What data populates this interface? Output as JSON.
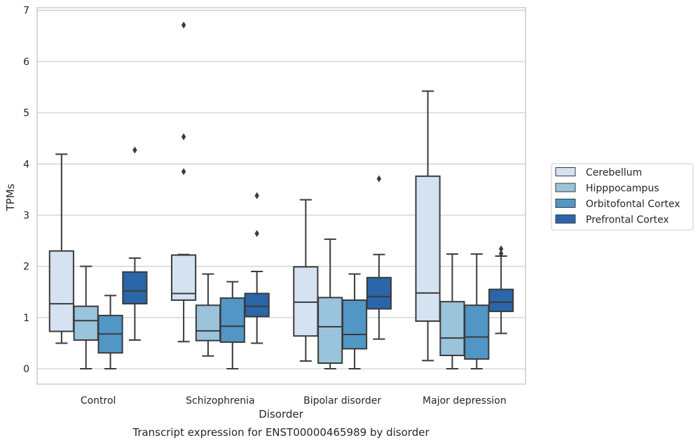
{
  "chart_data": {
    "type": "box",
    "title": "Transcript expression for ENST00000465989 by disorder",
    "xlabel": "Disorder",
    "ylabel": "TPMs",
    "ylim": [
      -0.3,
      7.05
    ],
    "yticks": [
      0,
      1,
      2,
      3,
      4,
      5,
      6,
      7
    ],
    "grid": "horizontal",
    "legend_position": "right",
    "categories": [
      "Control",
      "Schizophrenia",
      "Bipolar disorder",
      "Major depression"
    ],
    "series": [
      {
        "name": "Cerebellum",
        "color": "#d4e2f1",
        "boxes": [
          {
            "whislo": 0.5,
            "q1": 0.73,
            "med": 1.27,
            "q3": 2.3,
            "whishi": 4.19,
            "fliers": []
          },
          {
            "whislo": 0.53,
            "q1": 1.34,
            "med": 1.47,
            "q3": 2.22,
            "whishi": 2.23,
            "fliers": [
              3.85,
              4.53,
              6.71
            ]
          },
          {
            "whislo": 0.15,
            "q1": 0.64,
            "med": 1.3,
            "q3": 1.99,
            "whishi": 3.3,
            "fliers": []
          },
          {
            "whislo": 0.16,
            "q1": 0.93,
            "med": 1.48,
            "q3": 3.76,
            "whishi": 5.42,
            "fliers": []
          }
        ]
      },
      {
        "name": "Hipppocampus",
        "color": "#9ac3dc",
        "boxes": [
          {
            "whislo": 0.0,
            "q1": 0.56,
            "med": 0.94,
            "q3": 1.22,
            "whishi": 2.0,
            "fliers": []
          },
          {
            "whislo": 0.25,
            "q1": 0.55,
            "med": 0.74,
            "q3": 1.24,
            "whishi": 1.85,
            "fliers": []
          },
          {
            "whislo": 0.0,
            "q1": 0.11,
            "med": 0.82,
            "q3": 1.39,
            "whishi": 2.53,
            "fliers": []
          },
          {
            "whislo": 0.0,
            "q1": 0.26,
            "med": 0.6,
            "q3": 1.31,
            "whishi": 2.24,
            "fliers": []
          }
        ]
      },
      {
        "name": "Orbitofontal Cortex",
        "color": "#5196c5",
        "boxes": [
          {
            "whislo": 0.0,
            "q1": 0.31,
            "med": 0.68,
            "q3": 1.04,
            "whishi": 1.43,
            "fliers": []
          },
          {
            "whislo": 0.0,
            "q1": 0.52,
            "med": 0.83,
            "q3": 1.38,
            "whishi": 1.7,
            "fliers": []
          },
          {
            "whislo": 0.0,
            "q1": 0.39,
            "med": 0.67,
            "q3": 1.34,
            "whishi": 1.85,
            "fliers": []
          },
          {
            "whislo": 0.0,
            "q1": 0.19,
            "med": 0.62,
            "q3": 1.24,
            "whishi": 2.24,
            "fliers": []
          }
        ]
      },
      {
        "name": "Prefrontal Cortex",
        "color": "#2a66a8",
        "boxes": [
          {
            "whislo": 0.56,
            "q1": 1.27,
            "med": 1.52,
            "q3": 1.89,
            "whishi": 2.16,
            "fliers": [
              4.27
            ]
          },
          {
            "whislo": 0.5,
            "q1": 1.02,
            "med": 1.22,
            "q3": 1.47,
            "whishi": 1.9,
            "fliers": [
              2.64,
              3.38
            ]
          },
          {
            "whislo": 0.58,
            "q1": 1.17,
            "med": 1.41,
            "q3": 1.78,
            "whishi": 2.23,
            "fliers": [
              3.71
            ]
          },
          {
            "whislo": 0.69,
            "q1": 1.12,
            "med": 1.3,
            "q3": 1.55,
            "whishi": 2.2,
            "fliers": [
              2.25,
              2.34
            ]
          }
        ]
      }
    ]
  }
}
